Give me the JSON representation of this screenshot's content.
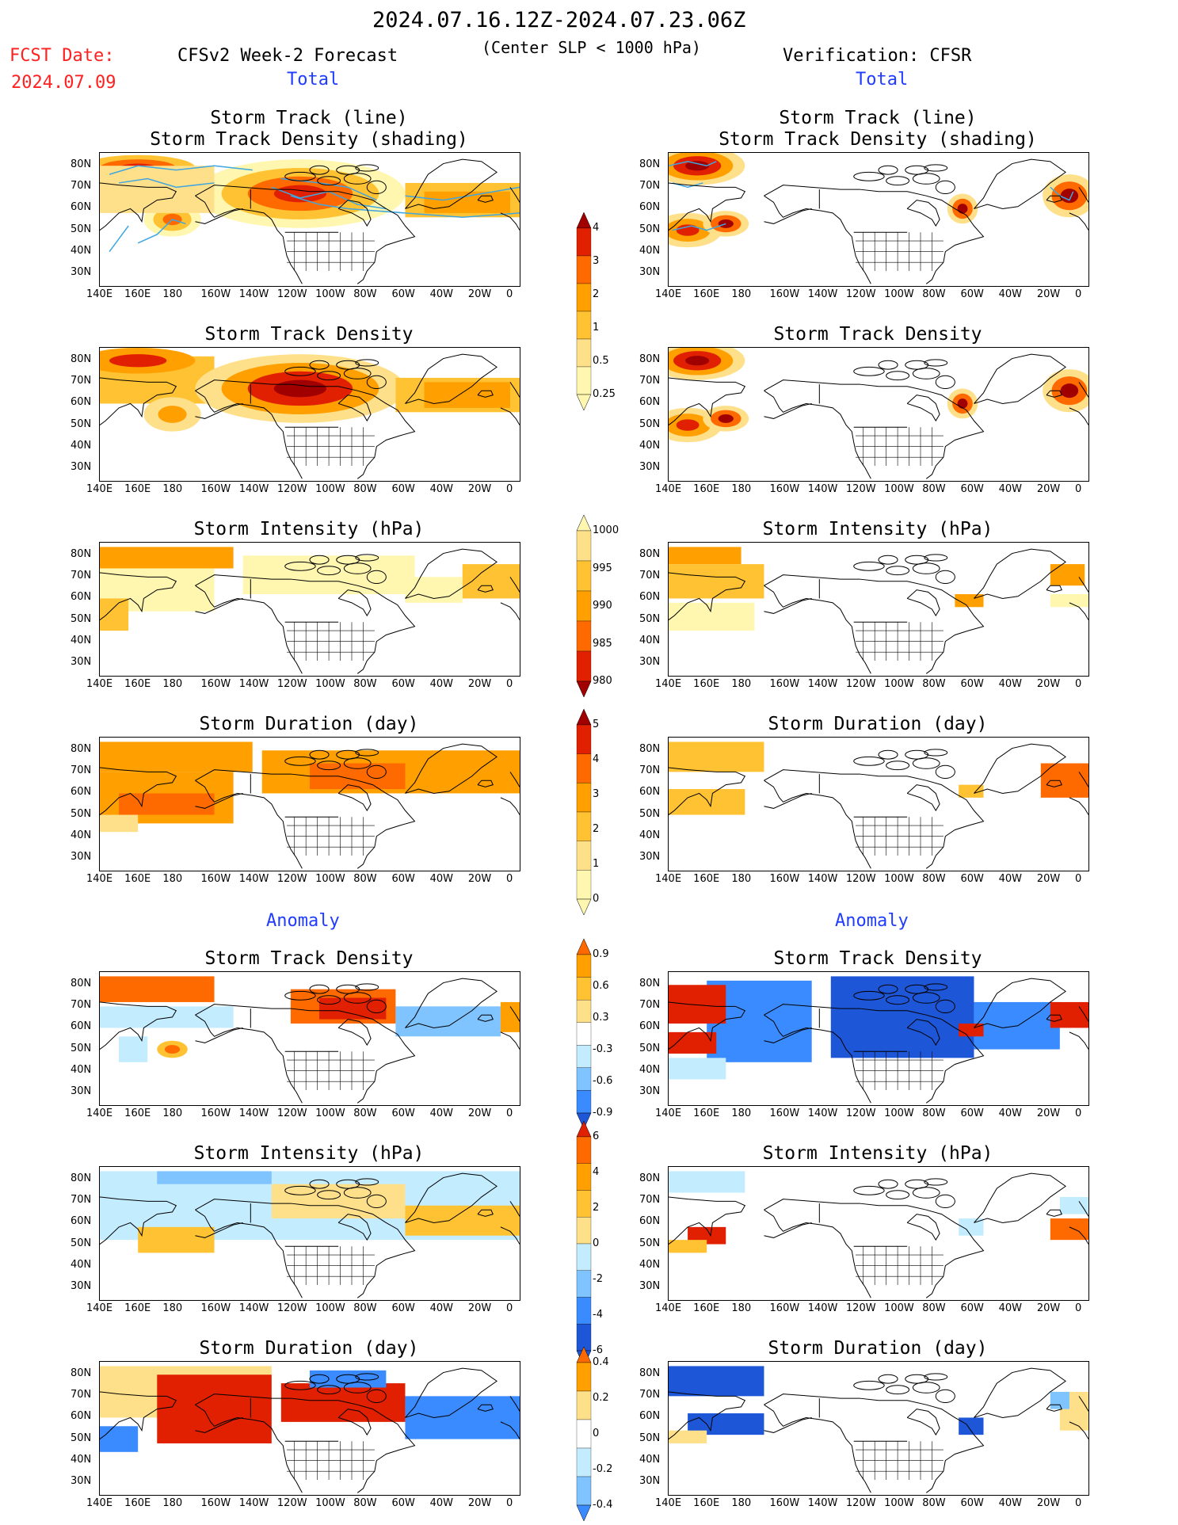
{
  "header": {
    "date_range": "2024.07.16.12Z-2024.07.23.06Z",
    "fcst_label": "FCST Date:",
    "fcst_date": "2024.07.09",
    "left_title": "CFSv2 Week-2 Forecast",
    "criterion": "(Center SLP < 1000 hPa)",
    "right_title": "Verification: CFSR",
    "total_left": "Total",
    "total_right": "Total",
    "anomaly_left": "Anomaly",
    "anomaly_right": "Anomaly"
  },
  "panel_titles": {
    "track_line": "Storm Track (line)",
    "track_shading": "Storm Track Density (shading)",
    "density": "Storm Track Density",
    "intensity": "Storm Intensity (hPa)",
    "duration": "Storm Duration (day)"
  },
  "axes": {
    "y_ticks": [
      "80N",
      "70N",
      "60N",
      "50N",
      "40N",
      "30N"
    ],
    "x_ticks": [
      "140E",
      "160E",
      "180",
      "160W",
      "140W",
      "120W",
      "100W",
      "80W",
      "60W",
      "40W",
      "20W",
      "0"
    ]
  },
  "colorbars": {
    "density_total": [
      "4",
      "3",
      "2",
      "1",
      "0.5",
      "0.25"
    ],
    "intensity_total": [
      "1000",
      "995",
      "990",
      "985",
      "980"
    ],
    "duration_total": [
      "5",
      "4",
      "3",
      "2",
      "1",
      "0"
    ],
    "density_anom": [
      "0.9",
      "0.6",
      "0.3",
      "-0.3",
      "-0.6",
      "-0.9"
    ],
    "intensity_anom": [
      "6",
      "4",
      "2",
      "0",
      "-2",
      "-4",
      "-6"
    ],
    "duration_anom": [
      "0.4",
      "0.2",
      "0",
      "-0.2",
      "-0.4"
    ]
  },
  "colors": {
    "warm": [
      "#fff7b0",
      "#ffe08a",
      "#ffc233",
      "#ff9f00",
      "#ff6a00",
      "#e02000",
      "#a00000"
    ],
    "cool": [
      "#c4ecff",
      "#7fc3ff",
      "#3a8bff",
      "#1e56d8"
    ],
    "track_line": "#3fa6e0"
  },
  "chart_data": [
    {
      "type": "heatmap",
      "title": "Storm Track (line) / Storm Track Density (shading)",
      "column": "CFSv2 Week-2 Forecast",
      "section": "Total"
    },
    {
      "type": "heatmap",
      "title": "Storm Track (line) / Storm Track Density (shading)",
      "column": "Verification: CFSR",
      "section": "Total"
    },
    {
      "type": "heatmap",
      "title": "Storm Track Density",
      "column": "CFSv2 Week-2 Forecast",
      "section": "Total"
    },
    {
      "type": "heatmap",
      "title": "Storm Track Density",
      "column": "Verification: CFSR",
      "section": "Total"
    },
    {
      "type": "heatmap",
      "title": "Storm Intensity (hPa)",
      "column": "CFSv2 Week-2 Forecast",
      "section": "Total"
    },
    {
      "type": "heatmap",
      "title": "Storm Intensity (hPa)",
      "column": "Verification: CFSR",
      "section": "Total"
    },
    {
      "type": "heatmap",
      "title": "Storm Duration (day)",
      "column": "CFSv2 Week-2 Forecast",
      "section": "Total"
    },
    {
      "type": "heatmap",
      "title": "Storm Duration (day)",
      "column": "Verification: CFSR",
      "section": "Total"
    },
    {
      "type": "heatmap",
      "title": "Storm Track Density",
      "column": "CFSv2 Week-2 Forecast",
      "section": "Anomaly"
    },
    {
      "type": "heatmap",
      "title": "Storm Track Density",
      "column": "Verification: CFSR",
      "section": "Anomaly"
    },
    {
      "type": "heatmap",
      "title": "Storm Intensity (hPa)",
      "column": "CFSv2 Week-2 Forecast",
      "section": "Anomaly"
    },
    {
      "type": "heatmap",
      "title": "Storm Intensity (hPa)",
      "column": "Verification: CFSR",
      "section": "Anomaly"
    },
    {
      "type": "heatmap",
      "title": "Storm Duration (day)",
      "column": "CFSv2 Week-2 Forecast",
      "section": "Anomaly"
    },
    {
      "type": "heatmap",
      "title": "Storm Duration (day)",
      "column": "Verification: CFSR",
      "section": "Anomaly"
    }
  ]
}
